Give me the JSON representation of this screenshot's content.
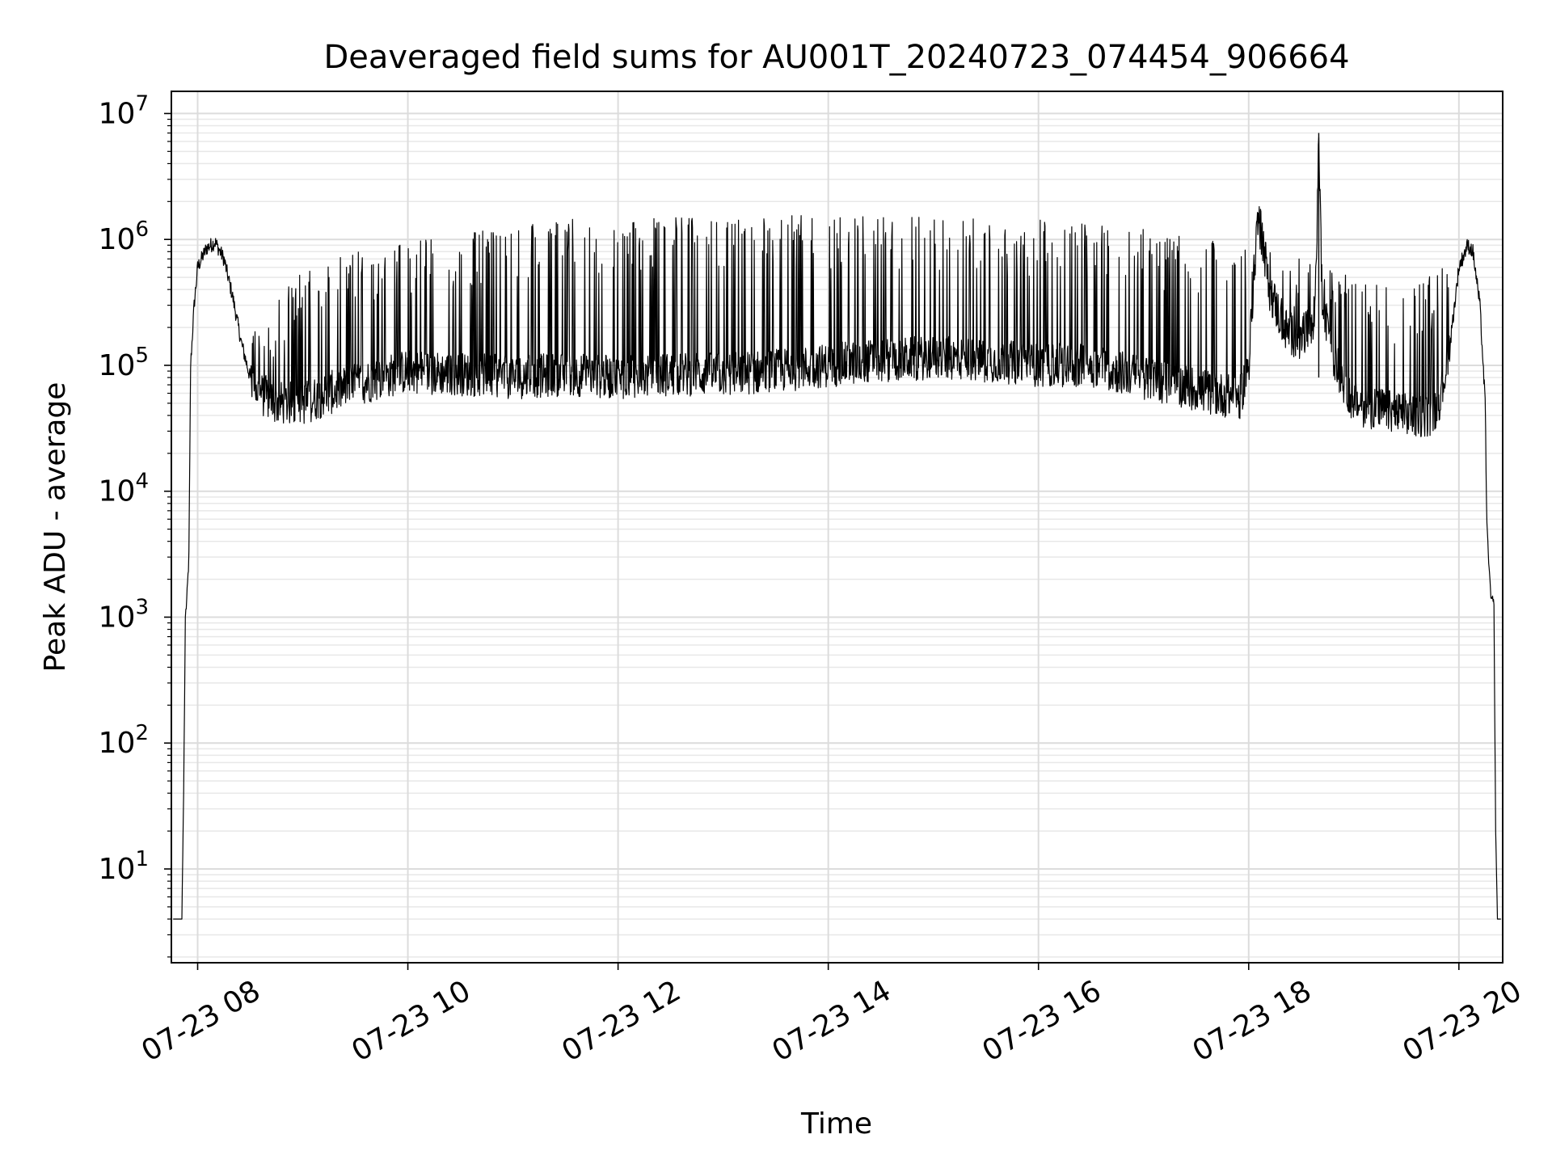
{
  "chart_data": {
    "type": "line",
    "title": "Deaveraged field sums for AU001T_20240723_074454_906664",
    "xlabel": "Time",
    "ylabel": "Peak ADU - average",
    "yscale": "log",
    "ylim": [
      1.8,
      15000000
    ],
    "xlim": [
      "2024-07-23 07:45",
      "2024-07-23 20:25"
    ],
    "grid": true,
    "x_ticks": [
      {
        "value": "2024-07-23 08:00",
        "label": "07-23 08"
      },
      {
        "value": "2024-07-23 10:00",
        "label": "07-23 10"
      },
      {
        "value": "2024-07-23 12:00",
        "label": "07-23 12"
      },
      {
        "value": "2024-07-23 14:00",
        "label": "07-23 14"
      },
      {
        "value": "2024-07-23 16:00",
        "label": "07-23 16"
      },
      {
        "value": "2024-07-23 18:00",
        "label": "07-23 18"
      },
      {
        "value": "2024-07-23 20:00",
        "label": "07-23 20"
      }
    ],
    "y_ticks": [
      {
        "value": 10,
        "base": "10",
        "exp": "1"
      },
      {
        "value": 100,
        "base": "10",
        "exp": "2"
      },
      {
        "value": 1000,
        "base": "10",
        "exp": "3"
      },
      {
        "value": 10000,
        "base": "10",
        "exp": "4"
      },
      {
        "value": 100000,
        "base": "10",
        "exp": "5"
      },
      {
        "value": 1000000,
        "base": "10",
        "exp": "6"
      },
      {
        "value": 10000000,
        "base": "10",
        "exp": "7"
      }
    ],
    "series": [
      {
        "color": "#000000",
        "x": [
          "2024-07-23 07:46",
          "2024-07-23 07:48",
          "2024-07-23 07:49",
          "2024-07-23 07:50",
          "2024-07-23 07:51",
          "2024-07-23 07:52",
          "2024-07-23 07:53",
          "2024-07-23 07:54",
          "2024-07-23 07:55",
          "2024-07-23 07:56",
          "2024-07-23 07:58",
          "2024-07-23 08:00",
          "2024-07-23 08:05",
          "2024-07-23 08:10",
          "2024-07-23 08:15",
          "2024-07-23 08:20",
          "2024-07-23 08:25",
          "2024-07-23 08:30",
          "2024-07-23 08:35",
          "2024-07-23 08:40",
          "2024-07-23 08:45",
          "2024-07-23 08:50",
          "2024-07-23 08:55",
          "2024-07-23 09:00",
          "2024-07-23 09:15",
          "2024-07-23 09:30",
          "2024-07-23 09:45",
          "2024-07-23 10:00",
          "2024-07-23 10:30",
          "2024-07-23 11:00",
          "2024-07-23 11:30",
          "2024-07-23 12:00",
          "2024-07-23 12:30",
          "2024-07-23 13:00",
          "2024-07-23 13:30",
          "2024-07-23 14:00",
          "2024-07-23 14:30",
          "2024-07-23 15:00",
          "2024-07-23 15:30",
          "2024-07-23 16:00",
          "2024-07-23 16:30",
          "2024-07-23 17:00",
          "2024-07-23 17:20",
          "2024-07-23 17:40",
          "2024-07-23 17:55",
          "2024-07-23 18:00",
          "2024-07-23 18:05",
          "2024-07-23 18:08",
          "2024-07-23 18:12",
          "2024-07-23 18:20",
          "2024-07-23 18:30",
          "2024-07-23 18:38",
          "2024-07-23 18:40",
          "2024-07-23 18:42",
          "2024-07-23 18:50",
          "2024-07-23 19:00",
          "2024-07-23 19:15",
          "2024-07-23 19:30",
          "2024-07-23 19:45",
          "2024-07-23 19:50",
          "2024-07-23 19:55",
          "2024-07-23 20:00",
          "2024-07-23 20:05",
          "2024-07-23 20:08",
          "2024-07-23 20:12",
          "2024-07-23 20:15",
          "2024-07-23 20:16",
          "2024-07-23 20:17",
          "2024-07-23 20:18",
          "2024-07-23 20:20",
          "2024-07-23 20:21",
          "2024-07-23 20:22",
          "2024-07-23 20:24"
        ],
        "y": [
          4,
          4,
          4,
          4,
          4,
          40,
          1000,
          1500,
          3000,
          100000,
          300000,
          600000,
          850000,
          950000,
          700000,
          350000,
          150000,
          80000,
          60000,
          55000,
          50000,
          50000,
          50000,
          50000,
          60000,
          70000,
          80000,
          90000,
          85000,
          80000,
          85000,
          80000,
          85000,
          85000,
          90000,
          100000,
          110000,
          115000,
          110000,
          100000,
          100000,
          80000,
          70000,
          60000,
          55000,
          100000,
          1500000,
          1000000,
          400000,
          200000,
          150000,
          250000,
          7000000,
          300000,
          100000,
          50000,
          45000,
          40000,
          40000,
          60000,
          150000,
          600000,
          900000,
          800000,
          300000,
          50000,
          5000,
          3000,
          1500,
          1200,
          20,
          4,
          4
        ]
      }
    ],
    "envelope_upper": {
      "x": [
        "2024-07-23 08:35",
        "2024-07-23 09:00",
        "2024-07-23 09:30",
        "2024-07-23 10:00",
        "2024-07-23 10:30",
        "2024-07-23 11:00",
        "2024-07-23 12:00",
        "2024-07-23 13:00",
        "2024-07-23 13:30",
        "2024-07-23 14:00",
        "2024-07-23 15:00",
        "2024-07-23 16:00",
        "2024-07-23 16:30",
        "2024-07-23 17:00",
        "2024-07-23 17:30",
        "2024-07-23 18:00",
        "2024-07-23 18:30",
        "2024-07-23 19:00",
        "2024-07-23 19:30",
        "2024-07-23 19:50"
      ],
      "y": [
        200000,
        600000,
        800000,
        1000000,
        1100000,
        1400000,
        1500000,
        1500000,
        1550000,
        1600000,
        1500000,
        1450000,
        1400000,
        1200000,
        1000000,
        900000,
        700000,
        500000,
        400000,
        600000
      ]
    }
  }
}
